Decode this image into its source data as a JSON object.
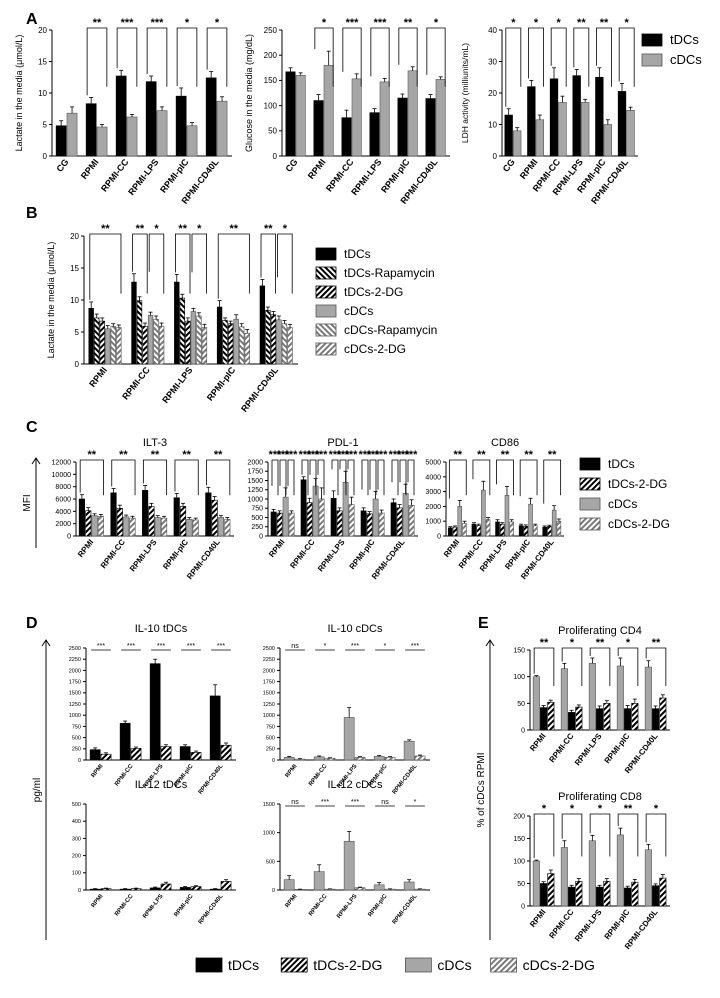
{
  "figure": {
    "panel_letters": [
      "A",
      "B",
      "C",
      "D",
      "E"
    ],
    "series_styles": {
      "tDCs": {
        "fill": "#000000",
        "pattern": "solid"
      },
      "tDCs-Rapamycin": {
        "fill": "#000000",
        "pattern": "backslash-hatch"
      },
      "tDCs-2-DG": {
        "fill": "#000000",
        "pattern": "slash-hatch"
      },
      "cDCs": {
        "fill": "#a6a6a6",
        "pattern": "solid"
      },
      "cDCs-Rapamycin": {
        "fill": "#7a7a7a",
        "pattern": "backslash-hatch"
      },
      "cDCs-2-DG": {
        "fill": "#7a7a7a",
        "pattern": "slash-hatch"
      }
    },
    "bottom_legend": [
      "tDCs",
      "tDCs-2-DG",
      "cDCs",
      "cDCs-2-DG"
    ]
  },
  "chart_data": [
    {
      "id": "A1",
      "panel": "A",
      "type": "bar",
      "title": "",
      "ylabel": "Lactate in the media (μmol/L)",
      "ylim": [
        0,
        20
      ],
      "yticks": [
        0,
        5,
        10,
        15,
        20
      ],
      "categories": [
        "CG",
        "RPMI",
        "RPMI-CC",
        "RPMI-LPS",
        "RPMI-pIC",
        "RPMI-CD40L"
      ],
      "series": [
        {
          "name": "tDCs",
          "values": [
            4.8,
            8.3,
            12.7,
            11.8,
            9.5,
            12.4
          ],
          "errors": [
            0.8,
            1.0,
            0.9,
            0.9,
            1.3,
            1.0
          ]
        },
        {
          "name": "cDCs",
          "values": [
            6.8,
            4.6,
            6.2,
            7.2,
            4.8,
            8.7
          ],
          "errors": [
            1.0,
            0.4,
            0.4,
            0.6,
            0.5,
            0.7
          ]
        }
      ],
      "significance": [
        "",
        "**",
        "***",
        "***",
        "*",
        "*"
      ]
    },
    {
      "id": "A2",
      "panel": "A",
      "type": "bar",
      "title": "",
      "ylabel": "Glucose in the media (mg/dL)",
      "ylim": [
        0,
        250
      ],
      "yticks": [
        0,
        50,
        100,
        150,
        200,
        250
      ],
      "categories": [
        "CG",
        "RPMI",
        "RPMI-CC",
        "RPMI-LPS",
        "RPMI-pIC",
        "RPMI-CD40L"
      ],
      "series": [
        {
          "name": "tDCs",
          "values": [
            167,
            110,
            76,
            86,
            115,
            114
          ],
          "errors": [
            8,
            12,
            15,
            8,
            8,
            8
          ]
        },
        {
          "name": "cDCs",
          "values": [
            160,
            180,
            153,
            147,
            169,
            152
          ],
          "errors": [
            5,
            28,
            10,
            7,
            8,
            5
          ]
        }
      ],
      "significance": [
        "",
        "*",
        "***",
        "***",
        "**",
        "*"
      ]
    },
    {
      "id": "A3",
      "panel": "A",
      "type": "bar",
      "title": "",
      "ylabel": "LDH activity (milliunits/mL)",
      "ylim": [
        0,
        40
      ],
      "yticks": [
        0,
        10,
        20,
        30,
        40
      ],
      "categories": [
        "CG",
        "RPMI",
        "RPMI-CC",
        "RPMI-LPS",
        "RPMI-pIC",
        "RPMI-CD40L"
      ],
      "series": [
        {
          "name": "tDCs",
          "values": [
            13,
            22,
            24.5,
            25.5,
            25,
            20.5
          ],
          "errors": [
            2.0,
            2.0,
            3.5,
            2.0,
            3.0,
            2.5
          ]
        },
        {
          "name": "cDCs",
          "values": [
            8,
            11.5,
            17,
            17,
            10,
            14.5
          ],
          "errors": [
            1.0,
            1.5,
            2.0,
            1.0,
            1.5,
            1.0
          ]
        }
      ],
      "significance": [
        "*",
        "*",
        "*",
        "**",
        "**",
        "*"
      ],
      "legend": [
        "tDCs",
        "cDCs"
      ]
    },
    {
      "id": "B",
      "panel": "B",
      "type": "bar",
      "title": "",
      "ylabel": "Lactate in the media (μmol/L)",
      "ylim": [
        0,
        20
      ],
      "yticks": [
        0,
        5,
        10,
        15,
        20
      ],
      "categories": [
        "RPMI",
        "RPMI-CC",
        "RPMI-LPS",
        "RPMI-pIC",
        "RPMI-CD40L"
      ],
      "series": [
        {
          "name": "tDCs",
          "values": [
            8.7,
            12.8,
            12.8,
            8.9,
            12.2
          ],
          "errors": [
            1.0,
            1.3,
            1.2,
            1.0,
            1.0
          ]
        },
        {
          "name": "tDCs-Rapamycin",
          "values": [
            7.2,
            9.9,
            10.3,
            6.8,
            8.4
          ],
          "errors": [
            0.6,
            0.6,
            0.6,
            0.4,
            0.5
          ]
        },
        {
          "name": "tDCs-2-DG",
          "values": [
            6.7,
            5.9,
            6.7,
            6.3,
            7.7
          ],
          "errors": [
            0.5,
            0.5,
            0.5,
            0.4,
            0.5
          ]
        },
        {
          "name": "cDCs",
          "values": [
            5.5,
            7.6,
            8.2,
            7.0,
            6.9
          ],
          "errors": [
            0.5,
            0.5,
            0.5,
            0.7,
            0.6
          ]
        },
        {
          "name": "cDCs-Rapamycin",
          "values": [
            5.9,
            7.0,
            7.5,
            5.8,
            6.3
          ],
          "errors": [
            0.4,
            0.5,
            0.5,
            0.5,
            0.5
          ]
        },
        {
          "name": "cDCs-2-DG",
          "values": [
            5.7,
            5.9,
            5.7,
            4.8,
            5.7
          ],
          "errors": [
            0.4,
            0.5,
            0.5,
            0.6,
            0.5
          ]
        }
      ],
      "significance": [
        [
          "**"
        ],
        [
          "**",
          "*"
        ],
        [
          "**",
          "*"
        ],
        [
          "**"
        ],
        [
          "**",
          "*"
        ]
      ],
      "legend": [
        "tDCs",
        "tDCs-Rapamycin",
        "tDCs-2-DG",
        "cDCs",
        "cDCs-Rapamycin",
        "cDCs-2-DG"
      ]
    },
    {
      "id": "C1",
      "panel": "C",
      "type": "bar",
      "title": "ILT-3",
      "ylabel": "MFI",
      "ylim": [
        0,
        12000
      ],
      "yticks": [
        0,
        2000,
        4000,
        6000,
        8000,
        10000,
        12000
      ],
      "categories": [
        "RPMI",
        "RPMI-CC",
        "RPMI-LPS",
        "RPMI-pIC",
        "RPMI-CD40L"
      ],
      "series": [
        {
          "name": "tDCs",
          "values": [
            6000,
            7000,
            7400,
            6200,
            7000
          ],
          "errors": [
            700,
            700,
            800,
            700,
            900
          ]
        },
        {
          "name": "tDCs-2-DG",
          "values": [
            4100,
            4500,
            4800,
            4800,
            5800
          ],
          "errors": [
            500,
            500,
            500,
            500,
            600
          ]
        },
        {
          "name": "cDCs",
          "values": [
            3300,
            3100,
            3000,
            2700,
            3000
          ],
          "errors": [
            300,
            300,
            300,
            300,
            300
          ]
        },
        {
          "name": "cDCs-2-DG",
          "values": [
            3200,
            2900,
            2900,
            2600,
            2700
          ],
          "errors": [
            300,
            300,
            300,
            300,
            300
          ]
        }
      ],
      "significance": [
        "**",
        "**",
        "**",
        "**",
        "**"
      ]
    },
    {
      "id": "C2",
      "panel": "C",
      "type": "bar",
      "title": "PDL-1",
      "ylabel": "",
      "ylim": [
        0,
        2000
      ],
      "yticks": [
        0,
        250,
        500,
        750,
        1000,
        1250,
        1500,
        1750,
        2000
      ],
      "categories": [
        "RPMI",
        "RPMI-CC",
        "RPMI-LPS",
        "RPMI-pIC",
        "RPMI-CD40L"
      ],
      "series": [
        {
          "name": "tDCs",
          "values": [
            650,
            1520,
            1020,
            680,
            900
          ],
          "errors": [
            70,
            80,
            200,
            80,
            100
          ]
        },
        {
          "name": "tDCs-2-DG",
          "values": [
            620,
            900,
            680,
            600,
            760
          ],
          "errors": [
            60,
            120,
            80,
            60,
            90
          ]
        },
        {
          "name": "cDCs",
          "values": [
            1050,
            1350,
            1450,
            1000,
            1150
          ],
          "errors": [
            250,
            200,
            300,
            200,
            250
          ]
        },
        {
          "name": "cDCs-2-DG",
          "values": [
            620,
            1000,
            850,
            620,
            830
          ],
          "errors": [
            60,
            300,
            200,
            80,
            150
          ]
        }
      ],
      "significance": [
        [
          "***",
          "***",
          "***"
        ],
        [
          "***",
          "***",
          "***"
        ],
        [
          "***",
          "***",
          "***"
        ],
        [
          "***",
          "***",
          "***"
        ],
        [
          "***",
          "***",
          "***"
        ]
      ]
    },
    {
      "id": "C3",
      "panel": "C",
      "type": "bar",
      "title": "CD86",
      "ylabel": "",
      "ylim": [
        0,
        5000
      ],
      "yticks": [
        0,
        1000,
        2000,
        3000,
        4000,
        5000
      ],
      "categories": [
        "RPMI",
        "RPMI-CC",
        "RPMI-LPS",
        "RPMI-pIC",
        "RPMI-CD40L"
      ],
      "series": [
        {
          "name": "tDCs",
          "values": [
            550,
            800,
            950,
            700,
            600
          ],
          "errors": [
            80,
            100,
            150,
            100,
            80
          ]
        },
        {
          "name": "tDCs-2-DG",
          "values": [
            600,
            700,
            800,
            650,
            650
          ],
          "errors": [
            80,
            100,
            100,
            100,
            80
          ]
        },
        {
          "name": "cDCs",
          "values": [
            2000,
            3100,
            2750,
            2150,
            1750
          ],
          "errors": [
            400,
            600,
            600,
            400,
            300
          ]
        },
        {
          "name": "cDCs-2-DG",
          "values": [
            850,
            1100,
            950,
            700,
            1000
          ],
          "errors": [
            150,
            150,
            150,
            100,
            150
          ]
        }
      ],
      "significance": [
        "**",
        "**",
        "**",
        "**",
        "**"
      ],
      "legend": [
        "tDCs",
        "tDCs-2-DG",
        "cDCs",
        "cDCs-2-DG"
      ]
    },
    {
      "id": "D1",
      "panel": "D",
      "type": "bar",
      "title": "IL-10 tDCs",
      "ylabel": "pg/ml",
      "ylim": [
        0,
        2500
      ],
      "yticks": [
        0,
        250,
        500,
        750,
        1000,
        1250,
        1500,
        1750,
        2000,
        2250,
        2500
      ],
      "categories": [
        "RPMI",
        "RPMI-CC",
        "RPMI-LPS",
        "RPMI-pIC",
        "RPMI-CD40L"
      ],
      "series": [
        {
          "name": "tDCs",
          "values": [
            230,
            820,
            2150,
            300,
            1430
          ],
          "errors": [
            40,
            50,
            100,
            40,
            250
          ]
        },
        {
          "name": "tDCs-2-DG",
          "values": [
            130,
            260,
            300,
            170,
            330
          ],
          "errors": [
            30,
            30,
            40,
            30,
            50
          ]
        }
      ],
      "significance": [
        "***",
        "***",
        "***",
        "***",
        "***"
      ]
    },
    {
      "id": "D2",
      "panel": "D",
      "type": "bar",
      "title": "IL-10 cDCs",
      "ylabel": "",
      "ylim": [
        0,
        2500
      ],
      "yticks": [
        0,
        250,
        500,
        750,
        1000,
        1250,
        1500,
        1750,
        2000,
        2250,
        2500
      ],
      "categories": [
        "RPMI",
        "RPMI-CC",
        "RPMI-LPS",
        "RPMI-pIC",
        "RPMI-CD40L"
      ],
      "series": [
        {
          "name": "cDCs",
          "values": [
            60,
            70,
            950,
            80,
            420
          ],
          "errors": [
            20,
            20,
            220,
            20,
            30
          ]
        },
        {
          "name": "cDCs-2-DG",
          "values": [
            20,
            40,
            60,
            60,
            90
          ],
          "errors": [
            10,
            10,
            15,
            15,
            20
          ]
        }
      ],
      "significance": [
        "ns",
        "*",
        "***",
        "*",
        "***"
      ]
    },
    {
      "id": "D3",
      "panel": "D",
      "type": "bar",
      "title": "IL-12 tDCs",
      "ylabel": "",
      "ylim": [
        0,
        500
      ],
      "yticks": [
        0,
        100,
        200,
        300,
        400,
        500
      ],
      "categories": [
        "RPMI",
        "RPMI-CC",
        "RPMI-LPS",
        "RPMI-pIC",
        "RPMI-CD40L"
      ],
      "series": [
        {
          "name": "tDCs",
          "values": [
            5,
            5,
            12,
            15,
            5
          ],
          "errors": [
            3,
            3,
            5,
            5,
            3
          ]
        },
        {
          "name": "tDCs-2-DG",
          "values": [
            8,
            8,
            35,
            20,
            50
          ],
          "errors": [
            3,
            3,
            10,
            5,
            10
          ]
        }
      ],
      "significance": []
    },
    {
      "id": "D4",
      "panel": "D",
      "type": "bar",
      "title": "IL-12 cDCs",
      "ylabel": "",
      "ylim": [
        0,
        1500
      ],
      "yticks": [
        0,
        500,
        1000,
        1500
      ],
      "categories": [
        "RPMI",
        "RPMI-CC",
        "RPMI-LPS",
        "RPMI-pIC",
        "RPMI-CD40L"
      ],
      "series": [
        {
          "name": "cDCs",
          "values": [
            180,
            320,
            850,
            90,
            140
          ],
          "errors": [
            70,
            120,
            170,
            40,
            40
          ]
        },
        {
          "name": "cDCs-2-DG",
          "values": [
            10,
            15,
            40,
            15,
            15
          ],
          "errors": [
            5,
            5,
            10,
            5,
            5
          ]
        }
      ],
      "significance": [
        "ns",
        "***",
        "***",
        "ns",
        "*"
      ]
    },
    {
      "id": "E1",
      "panel": "E",
      "type": "bar",
      "title": "Proliferating CD4",
      "ylabel": "% of cDCs RPMI",
      "ylim": [
        0,
        150
      ],
      "yticks": [
        0,
        50,
        100,
        150
      ],
      "categories": [
        "RPMI",
        "RPMI-CC",
        "RPMI-LPS",
        "RPMI-pIC",
        "RPMI-CD40L"
      ],
      "series": [
        {
          "name": "cDCs",
          "values": [
            100,
            115,
            125,
            120,
            118
          ],
          "errors": [
            2,
            10,
            10,
            15,
            12
          ]
        },
        {
          "name": "tDCs",
          "values": [
            42,
            33,
            40,
            40,
            40
          ],
          "errors": [
            4,
            4,
            5,
            6,
            5
          ]
        },
        {
          "name": "tDCs-2-DG",
          "values": [
            52,
            43,
            50,
            50,
            60
          ],
          "errors": [
            4,
            4,
            5,
            8,
            6
          ]
        }
      ],
      "significance": [
        "**",
        "*",
        "**",
        "*",
        "**"
      ]
    },
    {
      "id": "E2",
      "panel": "E",
      "type": "bar",
      "title": "Proliferating CD8",
      "ylabel": "",
      "ylim": [
        0,
        200
      ],
      "yticks": [
        0,
        50,
        100,
        150,
        200
      ],
      "categories": [
        "RPMI",
        "RPMI-CC",
        "RPMI-LPS",
        "RPMI-pIC",
        "RPMI-CD40L"
      ],
      "series": [
        {
          "name": "cDCs",
          "values": [
            100,
            130,
            145,
            158,
            125
          ],
          "errors": [
            2,
            15,
            12,
            15,
            12
          ]
        },
        {
          "name": "tDCs",
          "values": [
            50,
            42,
            42,
            40,
            45
          ],
          "errors": [
            4,
            4,
            4,
            4,
            4
          ]
        },
        {
          "name": "tDCs-2-DG",
          "values": [
            72,
            55,
            55,
            53,
            62
          ],
          "errors": [
            8,
            6,
            6,
            6,
            8
          ]
        }
      ],
      "significance": [
        "*",
        "*",
        "*",
        "**",
        "*"
      ]
    }
  ]
}
